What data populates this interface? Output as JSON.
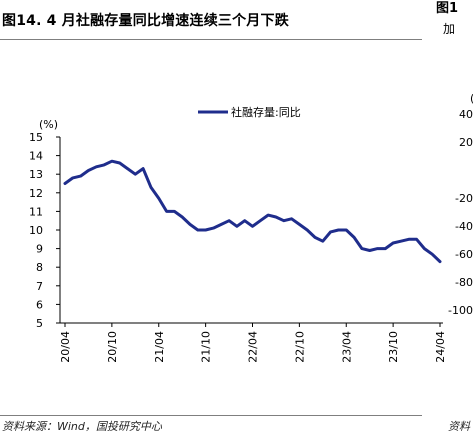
{
  "header": {
    "title": "图14. 4 月社融存量同比增速连续三个月下跌",
    "right_title": "图1",
    "right_subtitle": "加"
  },
  "footer": {
    "source": "资料来源：Wind，国投研究中心",
    "right_source": "资料"
  },
  "right_panel": {
    "y_ticks": [
      "40",
      "20",
      "-20",
      "-40",
      "-60",
      "-80",
      "-100"
    ],
    "partial_char": "("
  },
  "chart_data": {
    "type": "line",
    "ylabel": "(%)",
    "ylim": [
      5,
      15
    ],
    "yticks": [
      5,
      6,
      7,
      8,
      9,
      10,
      11,
      12,
      13,
      14,
      15
    ],
    "xticks": [
      "20/04",
      "20/10",
      "21/04",
      "21/10",
      "22/04",
      "22/10",
      "23/04",
      "23/10",
      "24/04"
    ],
    "legend_position": "top-center",
    "grid": false,
    "series": [
      {
        "name": "社融存量:同比",
        "color": "#1f2d8c",
        "x": [
          "20/04",
          "20/05",
          "20/06",
          "20/07",
          "20/08",
          "20/09",
          "20/10",
          "20/11",
          "20/12",
          "21/01",
          "21/02",
          "21/03",
          "21/04",
          "21/05",
          "21/06",
          "21/07",
          "21/08",
          "21/09",
          "21/10",
          "21/11",
          "21/12",
          "22/01",
          "22/02",
          "22/03",
          "22/04",
          "22/05",
          "22/06",
          "22/07",
          "22/08",
          "22/09",
          "22/10",
          "22/11",
          "22/12",
          "23/01",
          "23/02",
          "23/03",
          "23/04",
          "23/05",
          "23/06",
          "23/07",
          "23/08",
          "23/09",
          "23/10",
          "23/11",
          "23/12",
          "24/01",
          "24/02",
          "24/03",
          "24/04"
        ],
        "values": [
          12.5,
          12.8,
          12.9,
          13.2,
          13.4,
          13.5,
          13.7,
          13.6,
          13.3,
          13.0,
          13.3,
          12.3,
          11.7,
          11.0,
          11.0,
          10.7,
          10.3,
          10.0,
          10.0,
          10.1,
          10.3,
          10.5,
          10.2,
          10.5,
          10.2,
          10.5,
          10.8,
          10.7,
          10.5,
          10.6,
          10.3,
          10.0,
          9.6,
          9.4,
          9.9,
          10.0,
          10.0,
          9.6,
          9.0,
          8.9,
          9.0,
          9.0,
          9.3,
          9.4,
          9.5,
          9.5,
          9.0,
          8.7,
          8.3
        ]
      }
    ]
  }
}
